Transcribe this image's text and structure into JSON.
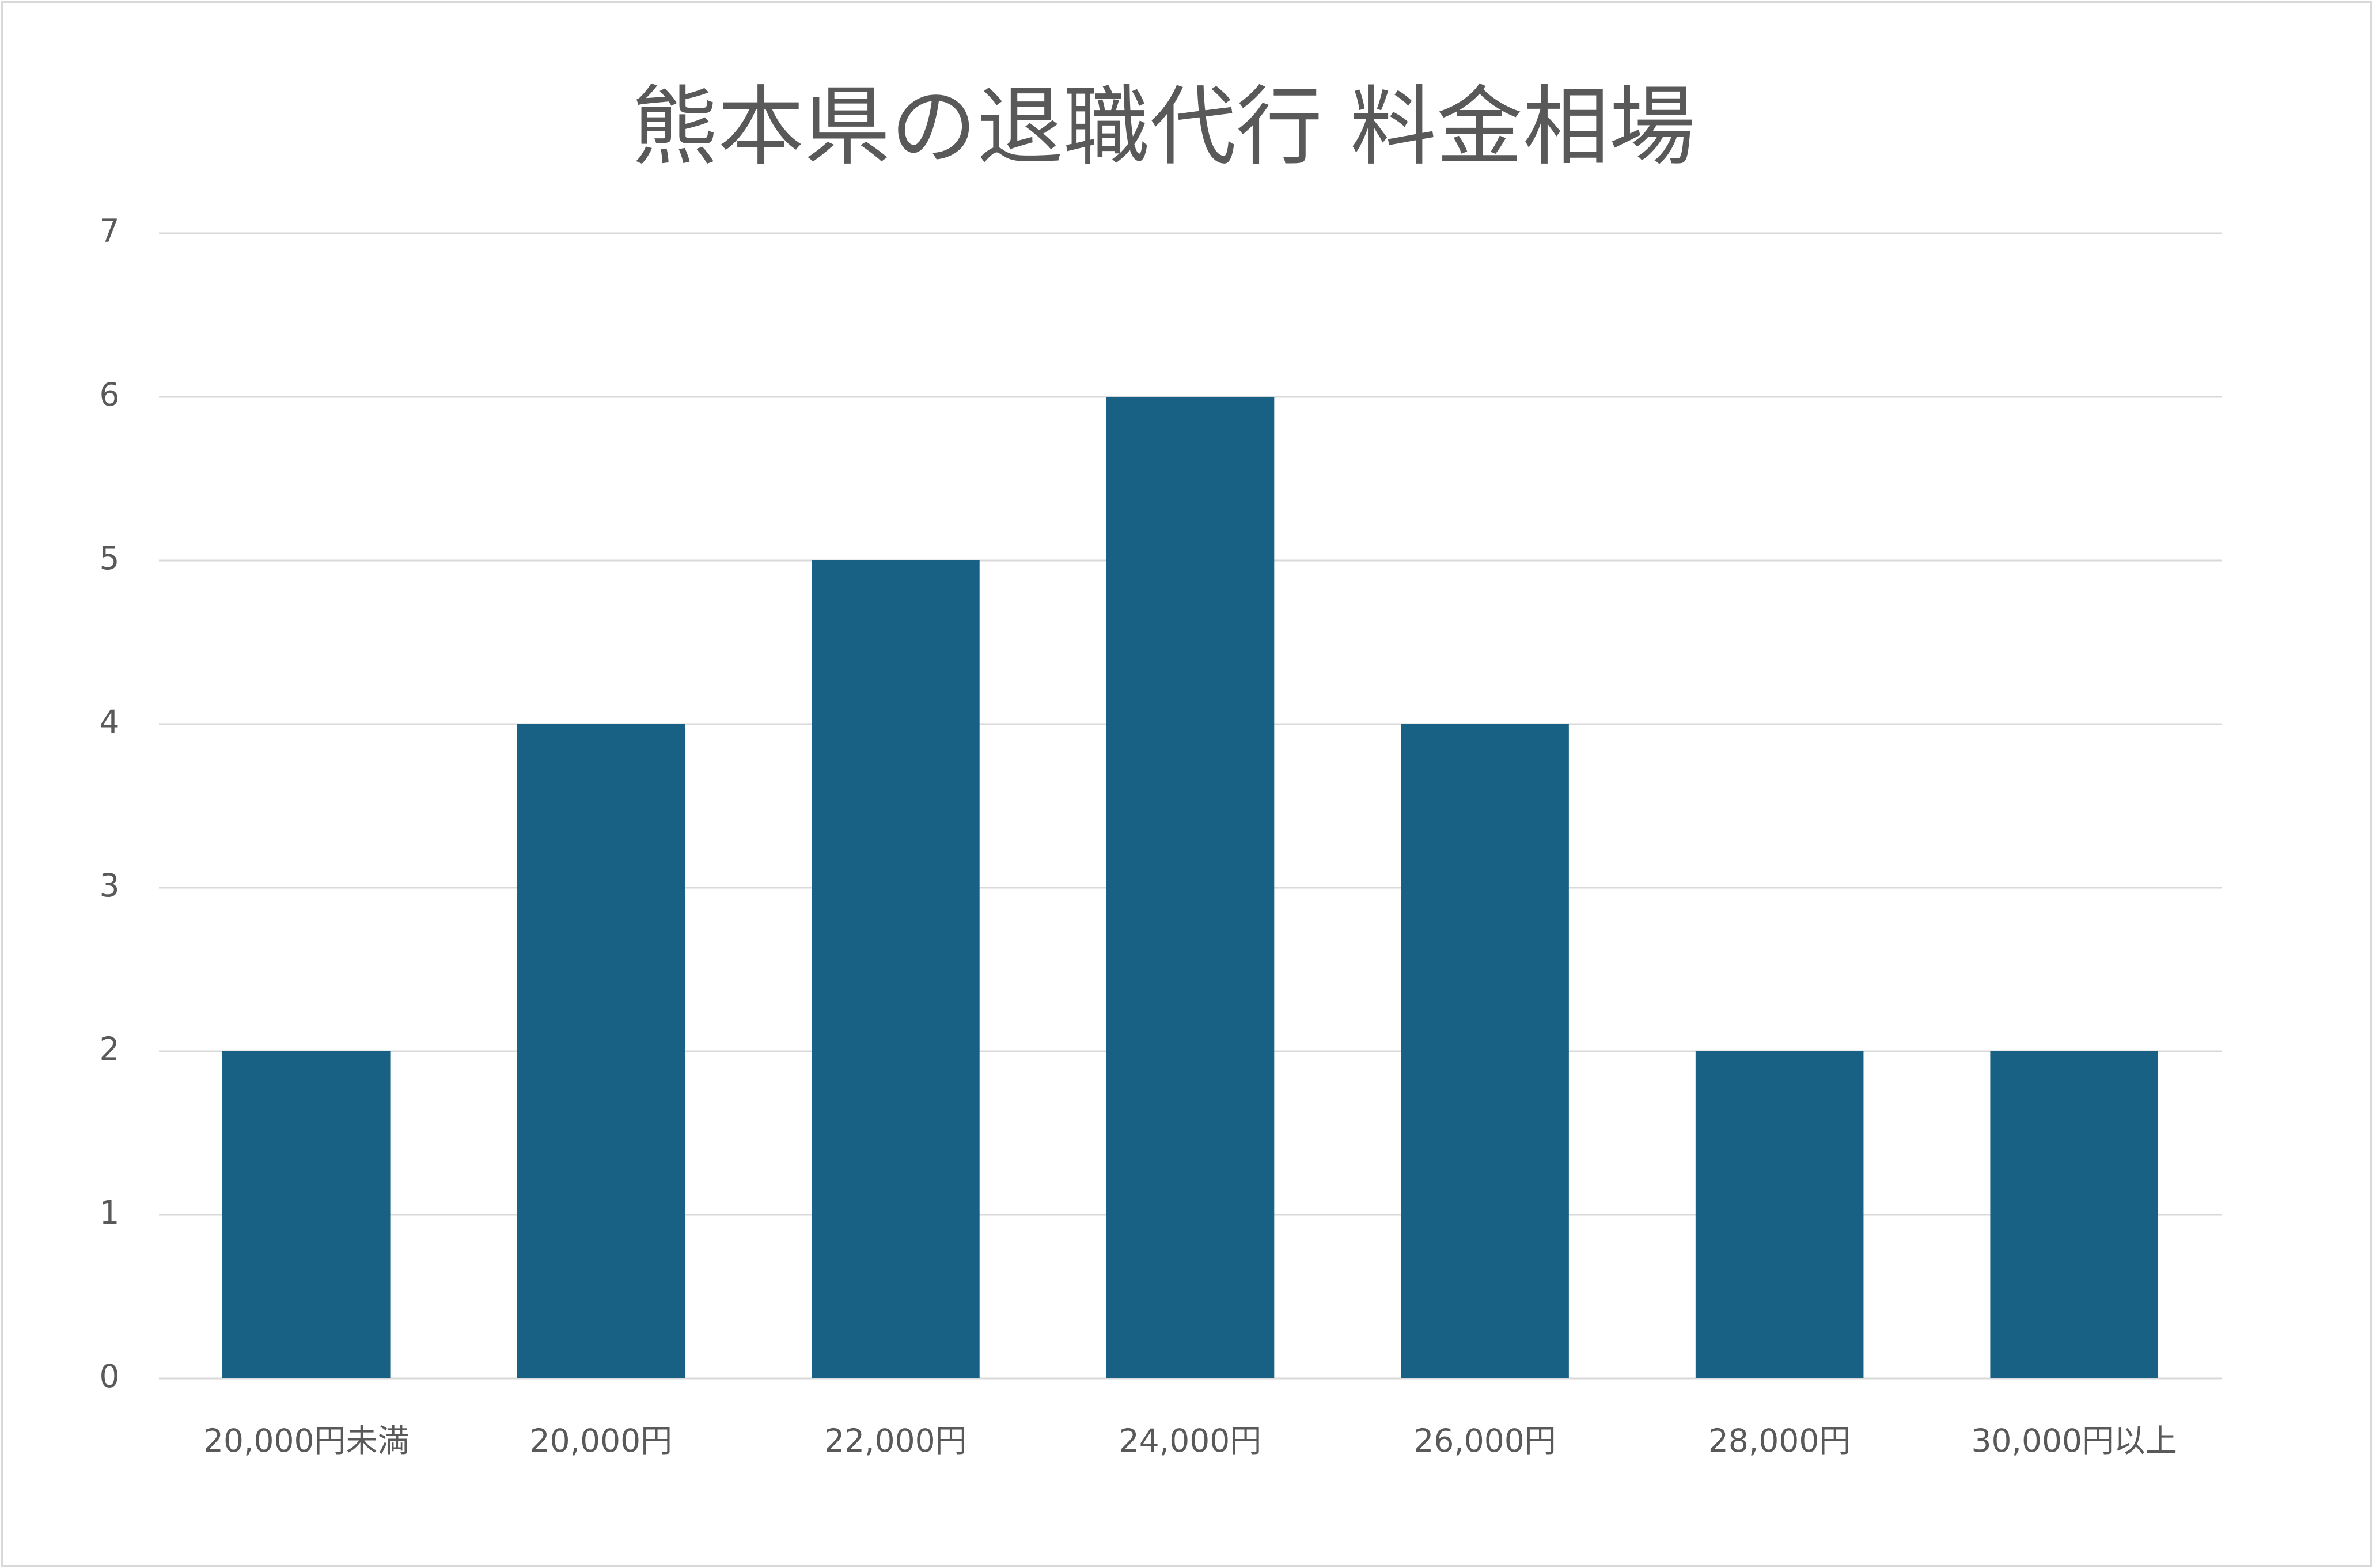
{
  "chart_data": {
    "type": "bar",
    "title": "熊本県の退職代行 料金相場",
    "categories": [
      "20,000円未満",
      "20,000円",
      "22,000円",
      "24,000円",
      "26,000円",
      "28,000円",
      "30,000円以上"
    ],
    "values": [
      2,
      4,
      5,
      6,
      4,
      2,
      2
    ],
    "color": "#186184",
    "ylim": [
      0,
      7
    ],
    "yticks": [
      0,
      1,
      2,
      3,
      4,
      5,
      6,
      7
    ],
    "grid": true
  }
}
